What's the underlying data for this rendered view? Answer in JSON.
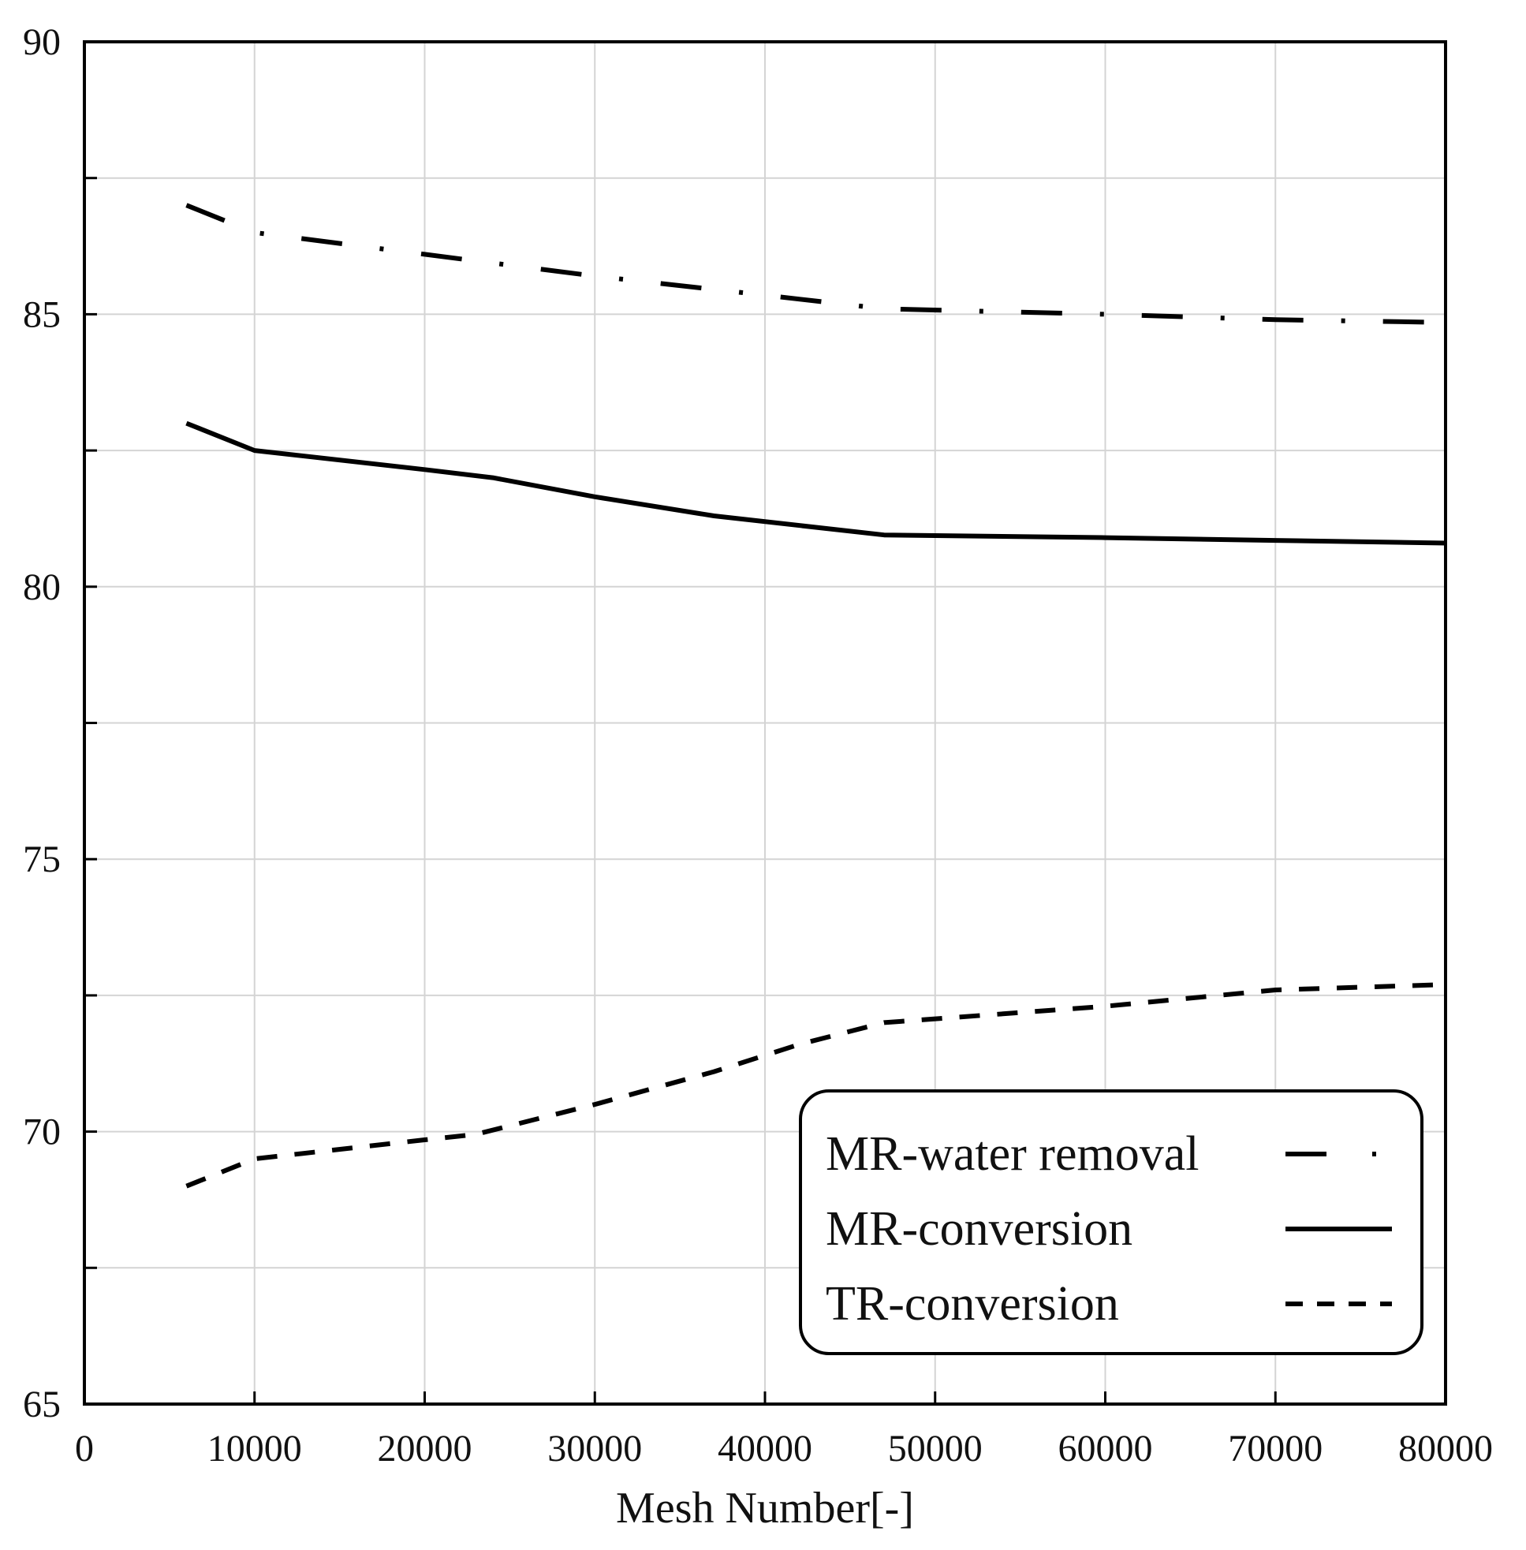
{
  "chart_data": {
    "type": "line",
    "title": "",
    "xlabel": "Mesh Number[-]",
    "ylabel": "",
    "xlim": [
      0,
      80000
    ],
    "ylim": [
      65,
      90
    ],
    "xticks": [
      0,
      10000,
      20000,
      30000,
      40000,
      50000,
      60000,
      70000,
      80000
    ],
    "yticks": [
      65,
      70,
      75,
      80,
      85,
      90
    ],
    "grid": true,
    "grid_step_x": 10000,
    "grid_step_y": 2.5,
    "legend_position": "bottom-right",
    "series": [
      {
        "name": "MR-water removal",
        "style": "dash-dot",
        "color": "#000000",
        "x": [
          6000,
          10000,
          20000,
          30000,
          40000,
          47000,
          60000,
          70000,
          80000
        ],
        "y": [
          87.0,
          86.5,
          86.1,
          85.7,
          85.35,
          85.1,
          85.0,
          84.9,
          84.85
        ]
      },
      {
        "name": "MR-conversion",
        "style": "solid",
        "color": "#000000",
        "x": [
          6000,
          10000,
          20000,
          24000,
          30000,
          37000,
          47000,
          60000,
          70000,
          80000
        ],
        "y": [
          83.0,
          82.5,
          82.15,
          82.0,
          81.65,
          81.3,
          80.95,
          80.9,
          80.85,
          80.8
        ]
      },
      {
        "name": "TR-conversion",
        "style": "dashed",
        "color": "#000000",
        "x": [
          6000,
          10000,
          20000,
          23000,
          30000,
          37000,
          42000,
          47000,
          60000,
          70000,
          80000
        ],
        "y": [
          69.0,
          69.5,
          69.85,
          69.95,
          70.5,
          71.1,
          71.6,
          72.0,
          72.3,
          72.6,
          72.7
        ]
      }
    ]
  }
}
